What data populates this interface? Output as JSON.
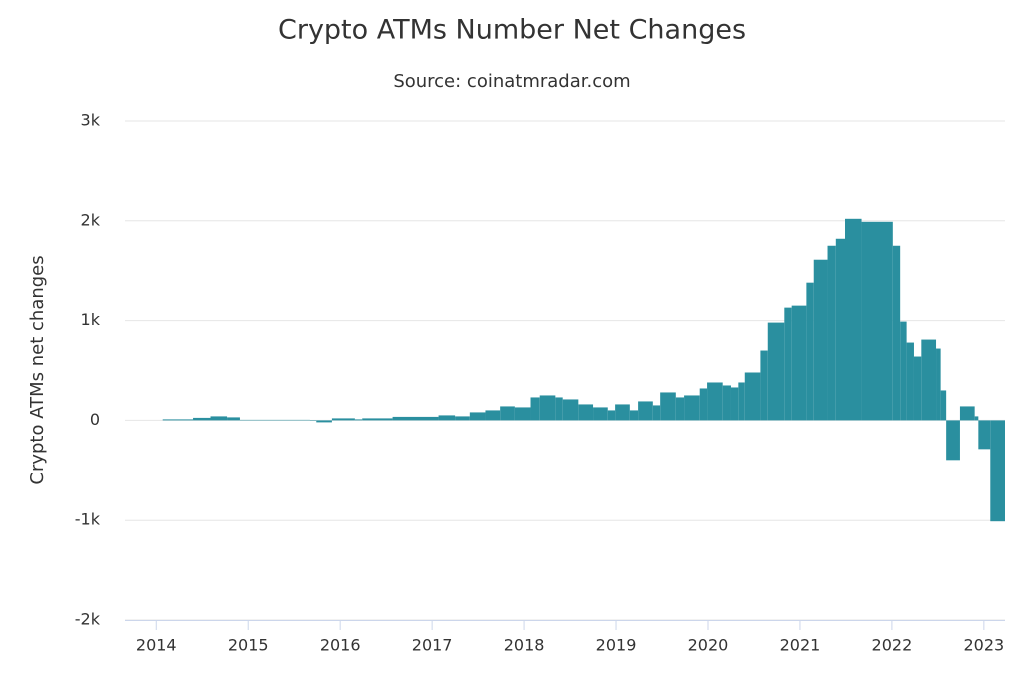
{
  "chart_data": {
    "type": "histogram",
    "title": "Crypto ATMs Number Net Changes",
    "subtitle": "Source: coinatmradar.com",
    "y_label": "Crypto ATMs net changes",
    "color": "#2a8f9f",
    "grid": true,
    "bins": [
      2014.07,
      2014.4,
      2014.59,
      2014.77,
      2014.91,
      2015.67,
      2015.74,
      2015.91,
      2016.16,
      2016.24,
      2016.57,
      2017.07,
      2017.25,
      2017.41,
      2017.58,
      2017.74,
      2017.9,
      2018.07,
      2018.17,
      2018.34,
      2018.42,
      2018.59,
      2018.75,
      2018.91,
      2018.99,
      2019.15,
      2019.24,
      2019.4,
      2019.48,
      2019.65,
      2019.74,
      2019.91,
      2019.99,
      2020.16,
      2020.25,
      2020.33,
      2020.4,
      2020.57,
      2020.65,
      2020.83,
      2020.91,
      2021.07,
      2021.15,
      2021.3,
      2021.39,
      2021.49,
      2021.67,
      2022.01,
      2022.09,
      2022.16,
      2022.24,
      2022.32,
      2022.48,
      2022.53,
      2022.59,
      2022.74,
      2022.9,
      2022.94,
      2023.07,
      2023.23
    ],
    "values": [
      10,
      25,
      40,
      30,
      5,
      -5,
      -20,
      20,
      10,
      20,
      35,
      50,
      40,
      80,
      100,
      140,
      130,
      230,
      250,
      230,
      210,
      160,
      130,
      100,
      160,
      100,
      190,
      150,
      280,
      230,
      250,
      320,
      380,
      350,
      330,
      380,
      480,
      700,
      980,
      1130,
      1150,
      1380,
      1610,
      1750,
      1820,
      2020,
      1990,
      1750,
      990,
      780,
      640,
      810,
      720,
      300,
      -400,
      140,
      40,
      -290,
      -1010
    ],
    "xlim": [
      2013.66,
      2023.23
    ],
    "xticks": [
      2014,
      2015,
      2016,
      2017,
      2018,
      2019,
      2020,
      2021,
      2022,
      2023
    ],
    "ylim": [
      -2000,
      3000
    ],
    "yticks": [
      {
        "value": -2000,
        "label": "-2k"
      },
      {
        "value": -1000,
        "label": "-1k"
      },
      0,
      {
        "value": 1000,
        "label": "1k"
      },
      {
        "value": 2000,
        "label": "2k"
      },
      {
        "value": 3000,
        "label": "3k"
      }
    ]
  }
}
